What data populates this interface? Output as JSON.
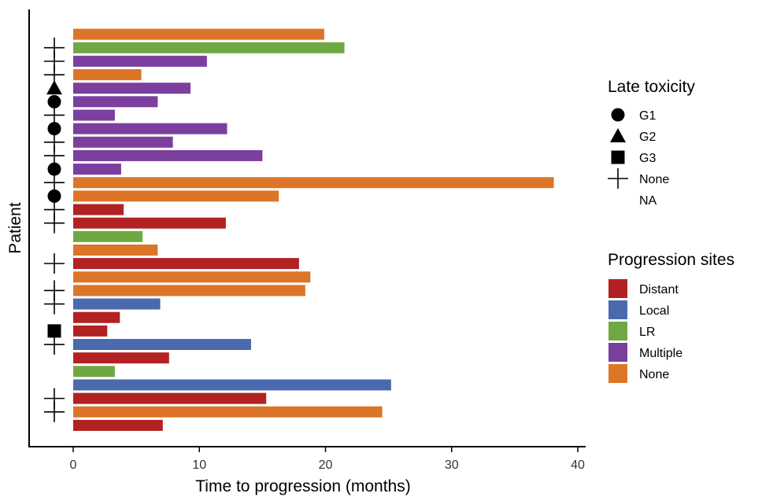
{
  "chart_data": {
    "type": "bar",
    "orientation": "horizontal",
    "xlabel": "Time to progression (months)",
    "ylabel": "Patient",
    "xlim": [
      0,
      40
    ],
    "xticks": [
      0,
      10,
      20,
      30,
      40
    ],
    "grid": false,
    "legend_placement": "right",
    "series_colors": {
      "Distant": "#b22222",
      "Local": "#4a6aad",
      "LR": "#6ea842",
      "Multiple": "#7b3f9e",
      "None": "#dc7528"
    },
    "legends": [
      {
        "title": "Late toxicity",
        "items": [
          {
            "label": "G1",
            "icon": "circle-icon"
          },
          {
            "label": "G2",
            "icon": "triangle-icon"
          },
          {
            "label": "G3",
            "icon": "square-icon"
          },
          {
            "label": "None",
            "icon": "plus-icon"
          },
          {
            "label": "NA",
            "icon": ""
          }
        ]
      },
      {
        "title": "Progression sites",
        "items": [
          {
            "label": "Distant",
            "color": "#b22222"
          },
          {
            "label": "Local",
            "color": "#4a6aad"
          },
          {
            "label": "LR",
            "color": "#6ea842"
          },
          {
            "label": "Multiple",
            "color": "#7b3f9e"
          },
          {
            "label": "None",
            "color": "#dc7528"
          }
        ]
      }
    ],
    "patients": [
      {
        "value": 19.9,
        "site": "None",
        "toxicity": "NA"
      },
      {
        "value": 21.5,
        "site": "LR",
        "toxicity": "None"
      },
      {
        "value": 10.6,
        "site": "Multiple",
        "toxicity": "None"
      },
      {
        "value": 5.4,
        "site": "None",
        "toxicity": "None"
      },
      {
        "value": 9.3,
        "site": "Multiple",
        "toxicity": "G2"
      },
      {
        "value": 6.7,
        "site": "Multiple",
        "toxicity": "G1"
      },
      {
        "value": 3.3,
        "site": "Multiple",
        "toxicity": "None"
      },
      {
        "value": 12.2,
        "site": "Multiple",
        "toxicity": "G1"
      },
      {
        "value": 7.9,
        "site": "Multiple",
        "toxicity": "None"
      },
      {
        "value": 15.0,
        "site": "Multiple",
        "toxicity": "None"
      },
      {
        "value": 3.8,
        "site": "Multiple",
        "toxicity": "G1"
      },
      {
        "value": 38.1,
        "site": "None",
        "toxicity": "None"
      },
      {
        "value": 16.3,
        "site": "None",
        "toxicity": "G1"
      },
      {
        "value": 4.0,
        "site": "Distant",
        "toxicity": "None"
      },
      {
        "value": 12.1,
        "site": "Distant",
        "toxicity": "None"
      },
      {
        "value": 5.5,
        "site": "LR",
        "toxicity": "NA"
      },
      {
        "value": 6.7,
        "site": "None",
        "toxicity": "NA"
      },
      {
        "value": 17.9,
        "site": "Distant",
        "toxicity": "None"
      },
      {
        "value": 18.8,
        "site": "None",
        "toxicity": "NA"
      },
      {
        "value": 18.4,
        "site": "None",
        "toxicity": "None"
      },
      {
        "value": 6.9,
        "site": "Local",
        "toxicity": "None"
      },
      {
        "value": 3.7,
        "site": "Distant",
        "toxicity": "NA"
      },
      {
        "value": 2.7,
        "site": "Distant",
        "toxicity": "G3"
      },
      {
        "value": 14.1,
        "site": "Local",
        "toxicity": "None"
      },
      {
        "value": 7.6,
        "site": "Distant",
        "toxicity": "NA"
      },
      {
        "value": 3.3,
        "site": "LR",
        "toxicity": "NA"
      },
      {
        "value": 25.2,
        "site": "Local",
        "toxicity": "NA"
      },
      {
        "value": 15.3,
        "site": "Distant",
        "toxicity": "None"
      },
      {
        "value": 24.5,
        "site": "None",
        "toxicity": "None"
      },
      {
        "value": 7.1,
        "site": "Distant",
        "toxicity": "NA"
      }
    ]
  }
}
